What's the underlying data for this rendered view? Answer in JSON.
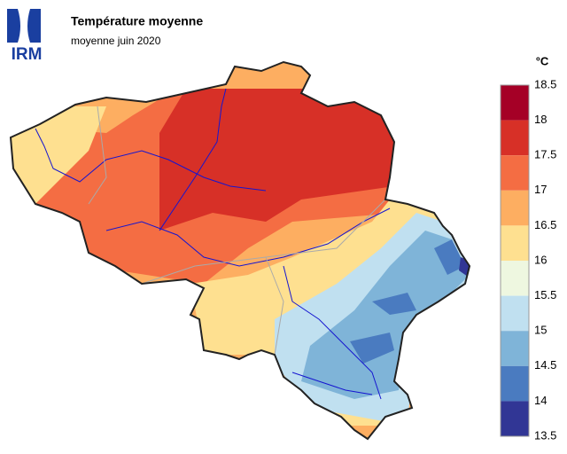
{
  "header": {
    "logo": "IRM",
    "title": "Température moyenne",
    "subtitle": "moyenne juin 2020"
  },
  "legend": {
    "unit": "°C",
    "ticks": [
      18.5,
      18,
      17.5,
      17,
      16.5,
      16,
      15.5,
      15,
      14.5,
      14,
      13.5
    ],
    "colors": [
      "#a50026",
      "#d73027",
      "#f46d43",
      "#fdae61",
      "#fee090",
      "#eef7e0",
      "#c0e0f0",
      "#7fb4d8",
      "#4a7bc0",
      "#313695"
    ]
  }
}
